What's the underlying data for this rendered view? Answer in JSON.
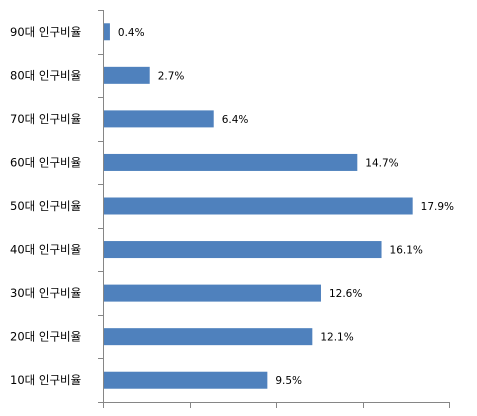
{
  "chart_data": {
    "type": "bar",
    "orientation": "horizontal",
    "categories": [
      "90대 인구비율",
      "80대 인구비율",
      "70대 인구비율",
      "60대 인구비율",
      "50대 인구비율",
      "40대 인구비율",
      "30대 인구비율",
      "20대 인구비율",
      "10대 인구비율"
    ],
    "values": [
      0.4,
      2.7,
      6.4,
      14.7,
      17.9,
      16.1,
      12.6,
      12.1,
      9.5
    ],
    "value_labels": [
      "0.4%",
      "2.7%",
      "6.4%",
      "14.7%",
      "17.9%",
      "16.1%",
      "12.6%",
      "12.1%",
      "9.5%"
    ],
    "xlim": [
      0,
      20
    ],
    "x_tick_step": 5,
    "show_x_tick_labels": false,
    "grid": false,
    "legend": "none",
    "title": "",
    "xlabel": "",
    "ylabel": "",
    "bar_color": "#4F81BD"
  }
}
